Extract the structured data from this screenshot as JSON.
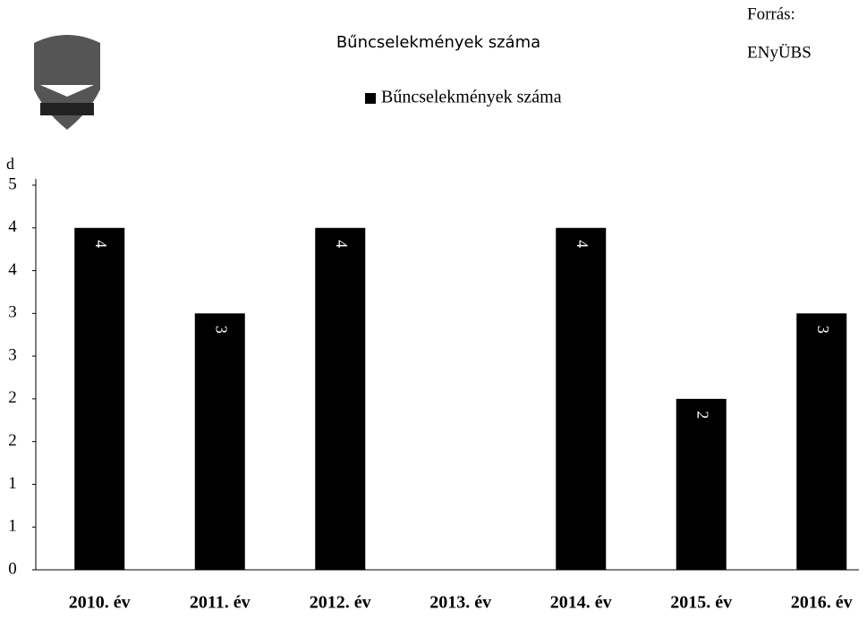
{
  "chart_data": {
    "type": "bar",
    "title": "Bűncselekmények száma",
    "source": [
      "Forrás:",
      "ENyÜBS"
    ],
    "y_label": "d",
    "legend": "Bűncselekmények száma",
    "categories": [
      "2010. év",
      "2011. év",
      "2012. év",
      "2013. év",
      "2014. év",
      "2015. év",
      "2016. év"
    ],
    "values": [
      4,
      3,
      4,
      null,
      4,
      2,
      3
    ],
    "color": "#000000",
    "ylim": [
      0,
      4.5
    ],
    "yticks": [
      0,
      {
        "value": 0.5,
        "label": "1"
      },
      1,
      {
        "value": 1.5,
        "label": "2"
      },
      2,
      {
        "value": 2.5,
        "label": "3"
      },
      3,
      {
        "value": 3.5,
        "label": "4"
      },
      4,
      {
        "value": 4.5,
        "label": "5"
      }
    ]
  }
}
